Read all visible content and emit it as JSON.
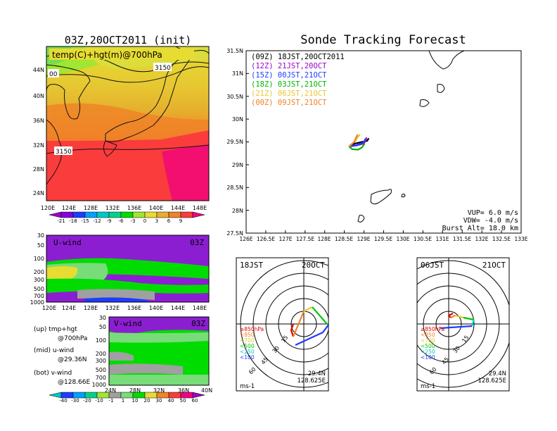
{
  "titles": {
    "left_main": "03Z,20OCT2011 (init)",
    "right_main": "Sonde Tracking Forecast"
  },
  "map_panel": {
    "label": "temp(C)+hgt(m)@700hPa",
    "contour_labels": [
      "00",
      "3150",
      "3150"
    ],
    "lat_ticks": [
      "44N",
      "40N",
      "36N",
      "32N",
      "28N",
      "24N"
    ],
    "lon_ticks": [
      "120E",
      "124E",
      "128E",
      "132E",
      "136E",
      "140E",
      "144E",
      "148E"
    ]
  },
  "temp_colorbar": {
    "labels": [
      "-21",
      "-18",
      "-15",
      "-12",
      "-9",
      "-6",
      "-3",
      "0",
      "3",
      "6",
      "9"
    ],
    "colors": [
      "#a000c8",
      "#8200dc",
      "#1e3cff",
      "#00a0ff",
      "#00c8c8",
      "#00d28c",
      "#00dc00",
      "#a0e632",
      "#e6dc32",
      "#e6af2d",
      "#f08228",
      "#fa3c3c",
      "#f00082"
    ]
  },
  "uwind_panel": {
    "label": "U-wind",
    "time": "03Z",
    "p_ticks": [
      "30",
      "50",
      "100",
      "200",
      "300",
      "500",
      "700",
      "1000"
    ],
    "lon_ticks": [
      "120E",
      "124E",
      "128E",
      "132E",
      "136E",
      "140E",
      "144E",
      "148E"
    ]
  },
  "vwind_panel": {
    "label": "V-wind",
    "time": "03Z",
    "p_ticks": [
      "30",
      "50",
      "100",
      "200",
      "300",
      "500",
      "700",
      "1000"
    ],
    "lat_ticks": [
      "24N",
      "28N",
      "32N",
      "36N",
      "40N"
    ]
  },
  "legend_notes": [
    {
      "a": "(up) tmp+hgt",
      "b": "@700hPa"
    },
    {
      "a": "(mid) u-wind",
      "b": "@29.36N"
    },
    {
      "a": "(bot) v-wind",
      "b": "@128.66E"
    }
  ],
  "wind_colorbar": {
    "labels": [
      "-40",
      "-30",
      "-20",
      "-10",
      "-1",
      "1",
      "10",
      "20",
      "30",
      "40",
      "50",
      "60"
    ],
    "colors": [
      "#00c8c8",
      "#1e3cff",
      "#00a0ff",
      "#00d28c",
      "#a0e632",
      "#a0a0a0",
      "#78dc78",
      "#00dc00",
      "#e6dc32",
      "#f08228",
      "#fa3c3c",
      "#f00082",
      "#a000c8"
    ]
  },
  "track_panel": {
    "legend": [
      {
        "text": "(09Z) 18JST,20OCT2011",
        "color": "#000000"
      },
      {
        "text": "(12Z) 21JST,20OCT",
        "color": "#a000c8"
      },
      {
        "text": "(15Z) 00JST,21OCT",
        "color": "#1e3cff"
      },
      {
        "text": "(18Z) 03JST,21OCT",
        "color": "#00b400"
      },
      {
        "text": "(21Z) 06JST,21OCT",
        "color": "#e6c832"
      },
      {
        "text": "(00Z) 09JST,21OCT",
        "color": "#f08228"
      }
    ],
    "info": [
      "VUP= 6.0 m/s",
      "VDW= -4.0 m/s",
      "Burst Alt= 18.0 km"
    ]
  },
  "hodo_left": {
    "time": "18JST",
    "date": "20OCT",
    "lat": "29.4N",
    "lon": "128.625E",
    "unit": "ms-1",
    "ring_labels": [
      "15",
      "30",
      "45",
      "60"
    ],
    "levels": [
      {
        "text": "≥850hPa",
        "color": "#e60000"
      },
      {
        "text": "<850",
        "color": "#f08228"
      },
      {
        "text": "<700",
        "color": "#e6c832"
      },
      {
        "text": "<500",
        "color": "#00c800"
      },
      {
        "text": "<250",
        "color": "#00c8c8"
      },
      {
        "text": "<100",
        "color": "#1e3cff"
      }
    ]
  },
  "hodo_right": {
    "time": "06JST",
    "date": "21OCT",
    "lat": "29.4N",
    "lon": "128.625E",
    "unit": "ms-1",
    "ring_labels": [
      "15",
      "30",
      "45",
      "60"
    ],
    "levels": [
      {
        "text": "≥850hPa",
        "color": "#e60000"
      },
      {
        "text": "<850",
        "color": "#f08228"
      },
      {
        "text": "<700",
        "color": "#e6c832"
      },
      {
        "text": "<500",
        "color": "#00c800"
      },
      {
        "text": "<250",
        "color": "#00c8c8"
      },
      {
        "text": "<100",
        "color": "#1e3cff"
      }
    ]
  },
  "chart_data": [
    {
      "type": "line",
      "title": "Sonde Tracking Forecast",
      "xlim": [
        126,
        133
      ],
      "ylim": [
        27.5,
        31.5
      ],
      "x_ticks": [
        "126E",
        "126.5E",
        "127E",
        "127.5E",
        "128E",
        "128.5E",
        "129E",
        "129.5E",
        "130E",
        "130.5E",
        "131E",
        "131.5E",
        "132E",
        "132.5E",
        "133E"
      ],
      "y_ticks": [
        "27.5N",
        "28N",
        "28.5N",
        "29N",
        "29.5N",
        "30N",
        "30.5N",
        "31N",
        "31.5N"
      ],
      "series": [
        {
          "name": "(09Z) 18JST,20OCT2011",
          "color": "#000000",
          "lon": [
            128.62,
            128.75,
            128.95,
            129.08,
            129.12
          ],
          "lat": [
            29.4,
            29.46,
            29.5,
            29.52,
            29.58
          ]
        },
        {
          "name": "(12Z) 21JST,20OCT",
          "color": "#a000c8",
          "lon": [
            128.62,
            128.8,
            128.98,
            129.05,
            129.06
          ],
          "lat": [
            29.4,
            29.42,
            29.46,
            29.53,
            29.6
          ]
        },
        {
          "name": "(15Z) 00JST,21OCT",
          "color": "#1e3cff",
          "lon": [
            128.62,
            128.82,
            128.97,
            129.02,
            129.03
          ],
          "lat": [
            29.4,
            29.43,
            29.48,
            29.53,
            29.57
          ]
        },
        {
          "name": "(18Z) 03JST,21OCT",
          "color": "#00b400",
          "lon": [
            128.62,
            128.7,
            128.85,
            128.95,
            129.02
          ],
          "lat": [
            29.4,
            29.34,
            29.33,
            29.38,
            29.47
          ]
        },
        {
          "name": "(21Z) 06JST,21OCT",
          "color": "#e6c832",
          "lon": [
            128.62,
            128.78,
            128.85,
            128.9
          ],
          "lat": [
            29.4,
            29.52,
            29.62,
            29.66
          ]
        },
        {
          "name": "(00Z) 09JST,21OCT",
          "color": "#f08228",
          "lon": [
            128.62,
            128.75,
            128.8,
            128.84
          ],
          "lat": [
            29.4,
            29.5,
            29.6,
            29.66
          ]
        }
      ]
    },
    {
      "type": "line",
      "title": "18JST 20OCT",
      "r_max": 75,
      "hodograph_ms": [
        {
          "level": "≥850hPa",
          "color": "#e60000",
          "u": [
            -5,
            -6,
            -5
          ],
          "v": [
            0,
            -3,
            -6
          ]
        },
        {
          "level": "<850",
          "color": "#f08228",
          "u": [
            -5,
            0
          ],
          "v": [
            -6,
            6
          ]
        },
        {
          "level": "<700",
          "color": "#e6c832",
          "u": [
            0,
            4
          ],
          "v": [
            6,
            8
          ]
        },
        {
          "level": "<500",
          "color": "#00c800",
          "u": [
            4,
            11
          ],
          "v": [
            8,
            0
          ]
        },
        {
          "level": "<250",
          "color": "#00c8c8",
          "u": [
            11,
            12
          ],
          "v": [
            0,
            0
          ]
        },
        {
          "level": "<100",
          "color": "#1e3cff",
          "u": [
            12,
            9,
            -4
          ],
          "v": [
            0,
            -4,
            -10
          ]
        }
      ]
    },
    {
      "type": "line",
      "title": "06JST 21OCT",
      "r_max": 75,
      "hodograph_ms": [
        {
          "level": "≥850hPa",
          "color": "#e60000",
          "u": [
            2,
            0,
            1
          ],
          "v": [
            5,
            4,
            3
          ]
        },
        {
          "level": "<850",
          "color": "#f08228",
          "u": [
            1,
            3
          ],
          "v": [
            3,
            4
          ]
        },
        {
          "level": "<700",
          "color": "#e6c832",
          "u": [
            3,
            7
          ],
          "v": [
            4,
            3
          ]
        },
        {
          "level": "<500",
          "color": "#00c800",
          "u": [
            7,
            12
          ],
          "v": [
            3,
            2
          ]
        },
        {
          "level": "<250",
          "color": "#00c8c8",
          "u": [
            12,
            11
          ],
          "v": [
            2,
            -1
          ]
        },
        {
          "level": "<100",
          "color": "#1e3cff",
          "u": [
            11,
            -4
          ],
          "v": [
            -1,
            -2
          ]
        }
      ]
    }
  ]
}
